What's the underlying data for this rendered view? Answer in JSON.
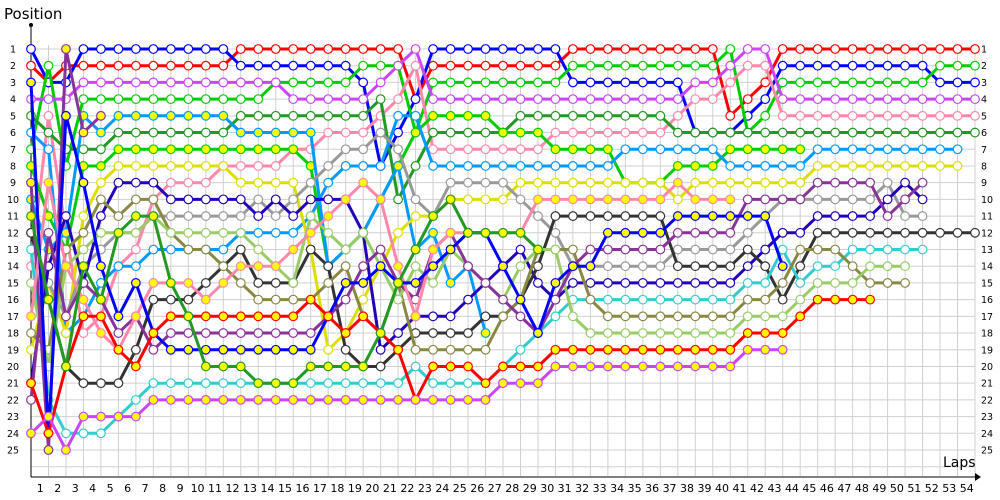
{
  "chart_data": {
    "type": "line",
    "title": "",
    "ylabel": "Position",
    "xlabel": "Laps",
    "x_ticks": [
      1,
      2,
      3,
      4,
      5,
      6,
      7,
      8,
      9,
      10,
      11,
      12,
      13,
      14,
      15,
      16,
      17,
      18,
      19,
      20,
      21,
      22,
      23,
      24,
      25,
      26,
      27,
      28,
      29,
      30,
      31,
      32,
      33,
      34,
      35,
      36,
      37,
      38,
      39,
      40,
      41,
      42,
      43,
      44,
      45,
      46,
      47,
      48,
      49,
      50,
      51,
      52,
      53,
      54
    ],
    "y_ticks": [
      1,
      2,
      3,
      4,
      5,
      6,
      7,
      8,
      9,
      10,
      11,
      12,
      13,
      14,
      15,
      16,
      17,
      18,
      19,
      20,
      21,
      22,
      23,
      24,
      25
    ],
    "xlim": [
      0,
      54
    ],
    "ylim": [
      1,
      25
    ],
    "y_inverted": true,
    "grid": true,
    "series": [
      {
        "color": "#ff0000",
        "marker_fill": "#ffffff",
        "positions": [
          2,
          3,
          2,
          2,
          2,
          2,
          2,
          2,
          2,
          2,
          2,
          2,
          1,
          1,
          1,
          1,
          1,
          1,
          1,
          1,
          1,
          1,
          4,
          2,
          2,
          2,
          2,
          2,
          2,
          2,
          2,
          1,
          1,
          1,
          1,
          1,
          1,
          1,
          1,
          1,
          5,
          4,
          3,
          1,
          1,
          1,
          1,
          1,
          1,
          1,
          1,
          1,
          1,
          1,
          1
        ]
      },
      {
        "color": "#0000ff",
        "marker_fill": "#ffffff",
        "positions": [
          1,
          3,
          3,
          1,
          1,
          1,
          1,
          1,
          1,
          1,
          1,
          1,
          2,
          2,
          2,
          2,
          2,
          2,
          2,
          3,
          8,
          6,
          4,
          1,
          1,
          1,
          1,
          1,
          1,
          1,
          1,
          3,
          3,
          3,
          3,
          3,
          3,
          3,
          6,
          6,
          6,
          5,
          4,
          2,
          2,
          2,
          2,
          2,
          2,
          2,
          2,
          2,
          3,
          3,
          3
        ]
      },
      {
        "color": "#00cc00",
        "marker_fill": "#ffffff",
        "positions": [
          7,
          2,
          8,
          4,
          4,
          4,
          4,
          4,
          4,
          4,
          4,
          4,
          4,
          4,
          3,
          3,
          3,
          3,
          3,
          2,
          2,
          2,
          6,
          3,
          3,
          3,
          3,
          3,
          3,
          3,
          3,
          2,
          2,
          2,
          2,
          2,
          2,
          2,
          2,
          2,
          1,
          6,
          5,
          3,
          3,
          3,
          3,
          3,
          3,
          3,
          3,
          3,
          2,
          2,
          2
        ]
      },
      {
        "color": "#cc44ff",
        "marker_fill": "#ffffff",
        "positions": [
          4,
          4,
          4,
          3,
          3,
          3,
          3,
          3,
          3,
          3,
          3,
          3,
          3,
          3,
          3,
          4,
          4,
          4,
          4,
          4,
          3,
          2,
          1,
          4,
          4,
          4,
          4,
          4,
          4,
          4,
          4,
          4,
          4,
          4,
          4,
          4,
          4,
          4,
          3,
          3,
          2,
          1,
          1,
          4,
          4,
          4,
          4,
          4,
          4,
          4,
          4,
          4,
          4,
          4,
          4
        ]
      },
      {
        "color": "#ff88aa",
        "marker_fill": "#ffffff",
        "positions": [
          14,
          5,
          12,
          18,
          17,
          14,
          13,
          10,
          9,
          9,
          9,
          8,
          8,
          8,
          8,
          7,
          7,
          6,
          6,
          6,
          5,
          4,
          2,
          7,
          7,
          7,
          7,
          7,
          7,
          7,
          6,
          6,
          6,
          6,
          6,
          6,
          6,
          5,
          4,
          4,
          3,
          2,
          2,
          5,
          5,
          5,
          5,
          5,
          5,
          5,
          5,
          5,
          5,
          5,
          5
        ]
      },
      {
        "color": "#229922",
        "marker_fill": "#ffffff",
        "positions": [
          5,
          6,
          7,
          7,
          7,
          6,
          6,
          6,
          6,
          6,
          6,
          6,
          5,
          5,
          5,
          5,
          5,
          5,
          5,
          5,
          4,
          10,
          8,
          6,
          6,
          6,
          6,
          6,
          5,
          5,
          5,
          5,
          5,
          5,
          5,
          5,
          5,
          6,
          6,
          6,
          6,
          6,
          6,
          6,
          6,
          6,
          6,
          6,
          6,
          6,
          6,
          6,
          6,
          6,
          6
        ]
      },
      {
        "color": "#00cc00",
        "marker_fill": "#ffff00",
        "positions": [
          8,
          11,
          13,
          8,
          8,
          7,
          7,
          7,
          7,
          7,
          7,
          7,
          7,
          7,
          7,
          7,
          8,
          14,
          13,
          12,
          10,
          8,
          6,
          5,
          5,
          5,
          5,
          6,
          6,
          6,
          7,
          7,
          7,
          7,
          9,
          9,
          9,
          8,
          8,
          8,
          7,
          7,
          7,
          7,
          7
        ]
      },
      {
        "color": "#0099ff",
        "marker_fill": "#ffffff",
        "positions": [
          6,
          7,
          18,
          17,
          15,
          14,
          14,
          13,
          13,
          13,
          13,
          13,
          12,
          12,
          12,
          12,
          11,
          9,
          8,
          8,
          8,
          5,
          5,
          8,
          8,
          8,
          8,
          8,
          8,
          8,
          8,
          8,
          8,
          8,
          7,
          7,
          7,
          7,
          7,
          7,
          8,
          8,
          8,
          8,
          8,
          7,
          7,
          7,
          7,
          7,
          7,
          7,
          7,
          7
        ]
      },
      {
        "color": "#0099ff",
        "marker_fill": "#ffff00",
        "positions": [
          10,
          13,
          12,
          5,
          6,
          5,
          5,
          5,
          5,
          5,
          5,
          5,
          6,
          6,
          6,
          6,
          6,
          14,
          13,
          12,
          10,
          8,
          13,
          12,
          15,
          14,
          18
        ]
      },
      {
        "color": "#dddd00",
        "marker_fill": "#ffffff",
        "positions": [
          19,
          15,
          18,
          11,
          9,
          8,
          8,
          8,
          8,
          8,
          8,
          8,
          9,
          9,
          9,
          9,
          13,
          19,
          18,
          16,
          14,
          12,
          11,
          11,
          10,
          10,
          10,
          10,
          9,
          9,
          9,
          9,
          9,
          9,
          9,
          9,
          9,
          10,
          9,
          9,
          9,
          9,
          9,
          9,
          9,
          8,
          8,
          8,
          8,
          8,
          8,
          8,
          8,
          8
        ]
      },
      {
        "color": "#999999",
        "marker_fill": "#ffffff",
        "positions": [
          12,
          15,
          17,
          14,
          13,
          12,
          12,
          11,
          11,
          11,
          11,
          11,
          11,
          10,
          11,
          10,
          9,
          8,
          7,
          7,
          6,
          7,
          10,
          11,
          9,
          9,
          9,
          9,
          10,
          11,
          12,
          14,
          14,
          14,
          14,
          14,
          14,
          13,
          13,
          13,
          13,
          12,
          11,
          10,
          10,
          10,
          10,
          10,
          10,
          9,
          11,
          11
        ]
      },
      {
        "color": "#2200bb",
        "marker_fill": "#ffffff",
        "positions": [
          21,
          14,
          11,
          15,
          11,
          9,
          9,
          9,
          10,
          10,
          10,
          10,
          10,
          11,
          10,
          11,
          10,
          10,
          10,
          12,
          19,
          18,
          17,
          17,
          17,
          16,
          15,
          14,
          13,
          15,
          16,
          15,
          15,
          15,
          15,
          15,
          15,
          15,
          15,
          15,
          15,
          14,
          13,
          12,
          12,
          11,
          11,
          11,
          11,
          10,
          9,
          10
        ]
      },
      {
        "color": "#333333",
        "marker_fill": "#ffffff",
        "positions": [
          12,
          16,
          20,
          21,
          21,
          21,
          19,
          16,
          16,
          16,
          15,
          14,
          13,
          15,
          15,
          15,
          13,
          14,
          19,
          20,
          20,
          19,
          18,
          18,
          18,
          18,
          17,
          17,
          16,
          14,
          11,
          11,
          11,
          11,
          11,
          11,
          11,
          14,
          14,
          14,
          14,
          13,
          14,
          16,
          14,
          12,
          12,
          12,
          12,
          12,
          12,
          12,
          12,
          12,
          12
        ]
      },
      {
        "color": "#33cccc",
        "marker_fill": "#ffffff",
        "positions": [
          13,
          22,
          24,
          24,
          24,
          23,
          22,
          21,
          21,
          21,
          21,
          21,
          21,
          21,
          21,
          21,
          21,
          21,
          21,
          21,
          21,
          21,
          20,
          21,
          21,
          21,
          21,
          20,
          19,
          18,
          17,
          16,
          16,
          16,
          16,
          16,
          16,
          16,
          16,
          16,
          16,
          15,
          15,
          13,
          15,
          14,
          14,
          13,
          13,
          13,
          13,
          13
        ]
      },
      {
        "color": "#888844",
        "marker_fill": "#ffffff",
        "positions": [
          18,
          19,
          13,
          12,
          10,
          11,
          10,
          10,
          12,
          13,
          13,
          14,
          15,
          16,
          16,
          16,
          16,
          15,
          14,
          17,
          18,
          15,
          19,
          19,
          19,
          19,
          19,
          17,
          16,
          13,
          13,
          13,
          16,
          17,
          17,
          17,
          17,
          17,
          17,
          17,
          17,
          16,
          16,
          15,
          13,
          13,
          13,
          14,
          15,
          15,
          15
        ]
      },
      {
        "color": "#99cc66",
        "marker_fill": "#ffffff",
        "positions": [
          15,
          20,
          14,
          13,
          12,
          12,
          12,
          11,
          12,
          12,
          12,
          12,
          12,
          13,
          14,
          15,
          11,
          12,
          13,
          12,
          14,
          16,
          14,
          15,
          13,
          14,
          15,
          16,
          14,
          13,
          13,
          17,
          18,
          18,
          18,
          18,
          18,
          18,
          18,
          18,
          18,
          17,
          17,
          17,
          16,
          15,
          15,
          15,
          14,
          14,
          14
        ]
      },
      {
        "color": "#883399",
        "marker_fill": "#ffffff",
        "positions": [
          22,
          12,
          17,
          15,
          16,
          18,
          17,
          19,
          18,
          18,
          18,
          18,
          18,
          18,
          18,
          18,
          18,
          17,
          16,
          14,
          13,
          15,
          16,
          13,
          12,
          14,
          15,
          16,
          17,
          18,
          16,
          14,
          13,
          13,
          13,
          13,
          13,
          12,
          12,
          12,
          12,
          10,
          10,
          10,
          10,
          9,
          9,
          9,
          9,
          11,
          10,
          9
        ]
      },
      {
        "color": "#883399",
        "marker_fill": "#ffff00",
        "positions": [
          9,
          25,
          1,
          6,
          5
        ]
      },
      {
        "color": "#ff88aa",
        "marker_fill": "#ffff00",
        "positions": [
          17,
          9,
          14,
          16,
          18,
          19,
          17,
          15,
          15,
          15,
          16,
          15,
          14,
          14,
          14,
          13,
          12,
          11,
          10,
          9,
          10,
          14,
          17,
          13,
          12,
          12,
          12,
          12,
          12,
          10,
          10,
          10,
          10,
          10,
          10,
          10,
          10,
          9,
          10,
          10,
          10
        ]
      },
      {
        "color": "#0000ff",
        "marker_fill": "#ffff00",
        "positions": [
          3,
          24,
          5,
          9,
          14,
          17,
          15,
          18,
          19,
          19,
          19,
          19,
          19,
          19,
          19,
          19,
          19,
          17,
          15,
          15,
          14,
          15,
          15,
          14,
          13,
          12,
          12,
          14,
          16,
          18,
          15,
          14,
          14,
          12,
          12,
          12,
          12,
          11,
          11,
          11,
          11,
          11,
          11,
          14
        ]
      },
      {
        "color": "#ff0000",
        "marker_fill": "#ffff00",
        "positions": [
          21,
          24,
          20,
          17,
          17,
          19,
          20,
          18,
          17,
          17,
          17,
          17,
          17,
          17,
          17,
          17,
          16,
          17,
          18,
          17,
          18,
          19,
          22,
          20,
          20,
          20,
          21,
          20,
          20,
          20,
          19,
          19,
          19,
          19,
          19,
          19,
          19,
          19,
          19,
          19,
          19,
          18,
          18,
          18,
          17,
          16,
          16,
          16,
          16
        ]
      },
      {
        "color": "#cc44ff",
        "marker_fill": "#ffff00",
        "positions": [
          24,
          23,
          25,
          23,
          23,
          23,
          23,
          22,
          22,
          22,
          22,
          22,
          22,
          22,
          22,
          22,
          22,
          22,
          22,
          22,
          22,
          22,
          22,
          22,
          22,
          22,
          22,
          21,
          21,
          21,
          20,
          20,
          20,
          20,
          20,
          20,
          20,
          20,
          20,
          20,
          20,
          19,
          19,
          19
        ]
      },
      {
        "color": "#229922",
        "marker_fill": "#ffff00",
        "positions": [
          11,
          16,
          20,
          14,
          16,
          12,
          11,
          11,
          15,
          17,
          20,
          20,
          20,
          21,
          21,
          21,
          20,
          20,
          20,
          20,
          18,
          15,
          13,
          11,
          10,
          12,
          12,
          12,
          12,
          13
        ]
      }
    ]
  }
}
